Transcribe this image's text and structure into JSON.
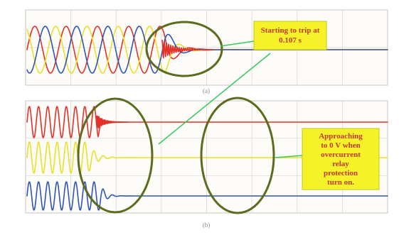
{
  "chart_data": [
    {
      "panel": "(a)",
      "type": "line",
      "trip_time_s": 0.107,
      "series": [
        {
          "color": "#e3312a",
          "phase_deg": 0,
          "amplitude": 1.0
        },
        {
          "color": "#e9e02b",
          "phase_deg": 120,
          "amplitude": 1.0
        },
        {
          "color": "#2e55b8",
          "phase_deg": 240,
          "amplitude": 1.0
        }
      ],
      "annotation": "Starting to trip at 0.107 s"
    },
    {
      "panel": "(b)",
      "type": "line",
      "series": [
        {
          "color": "#e3312a"
        },
        {
          "color": "#e9e02b"
        },
        {
          "color": "#2e55b8"
        }
      ],
      "annotation": "Approaching to 0 V when overcurrent relay protection turn on."
    }
  ],
  "labels": {
    "panel_a": "(a)",
    "panel_b": "(b)",
    "callout_a_lines": [
      "Starting to trip at",
      "0.107 s"
    ],
    "callout_b_lines": [
      "Approaching",
      "to 0 V when",
      "overcurrent",
      "relay",
      "protection",
      "turn on."
    ]
  },
  "colors": {
    "ellipse": "#5e6a1e",
    "arrow": "#39c85a",
    "callout_fill": "#f6f22a",
    "callout_text": "#c0392b"
  }
}
